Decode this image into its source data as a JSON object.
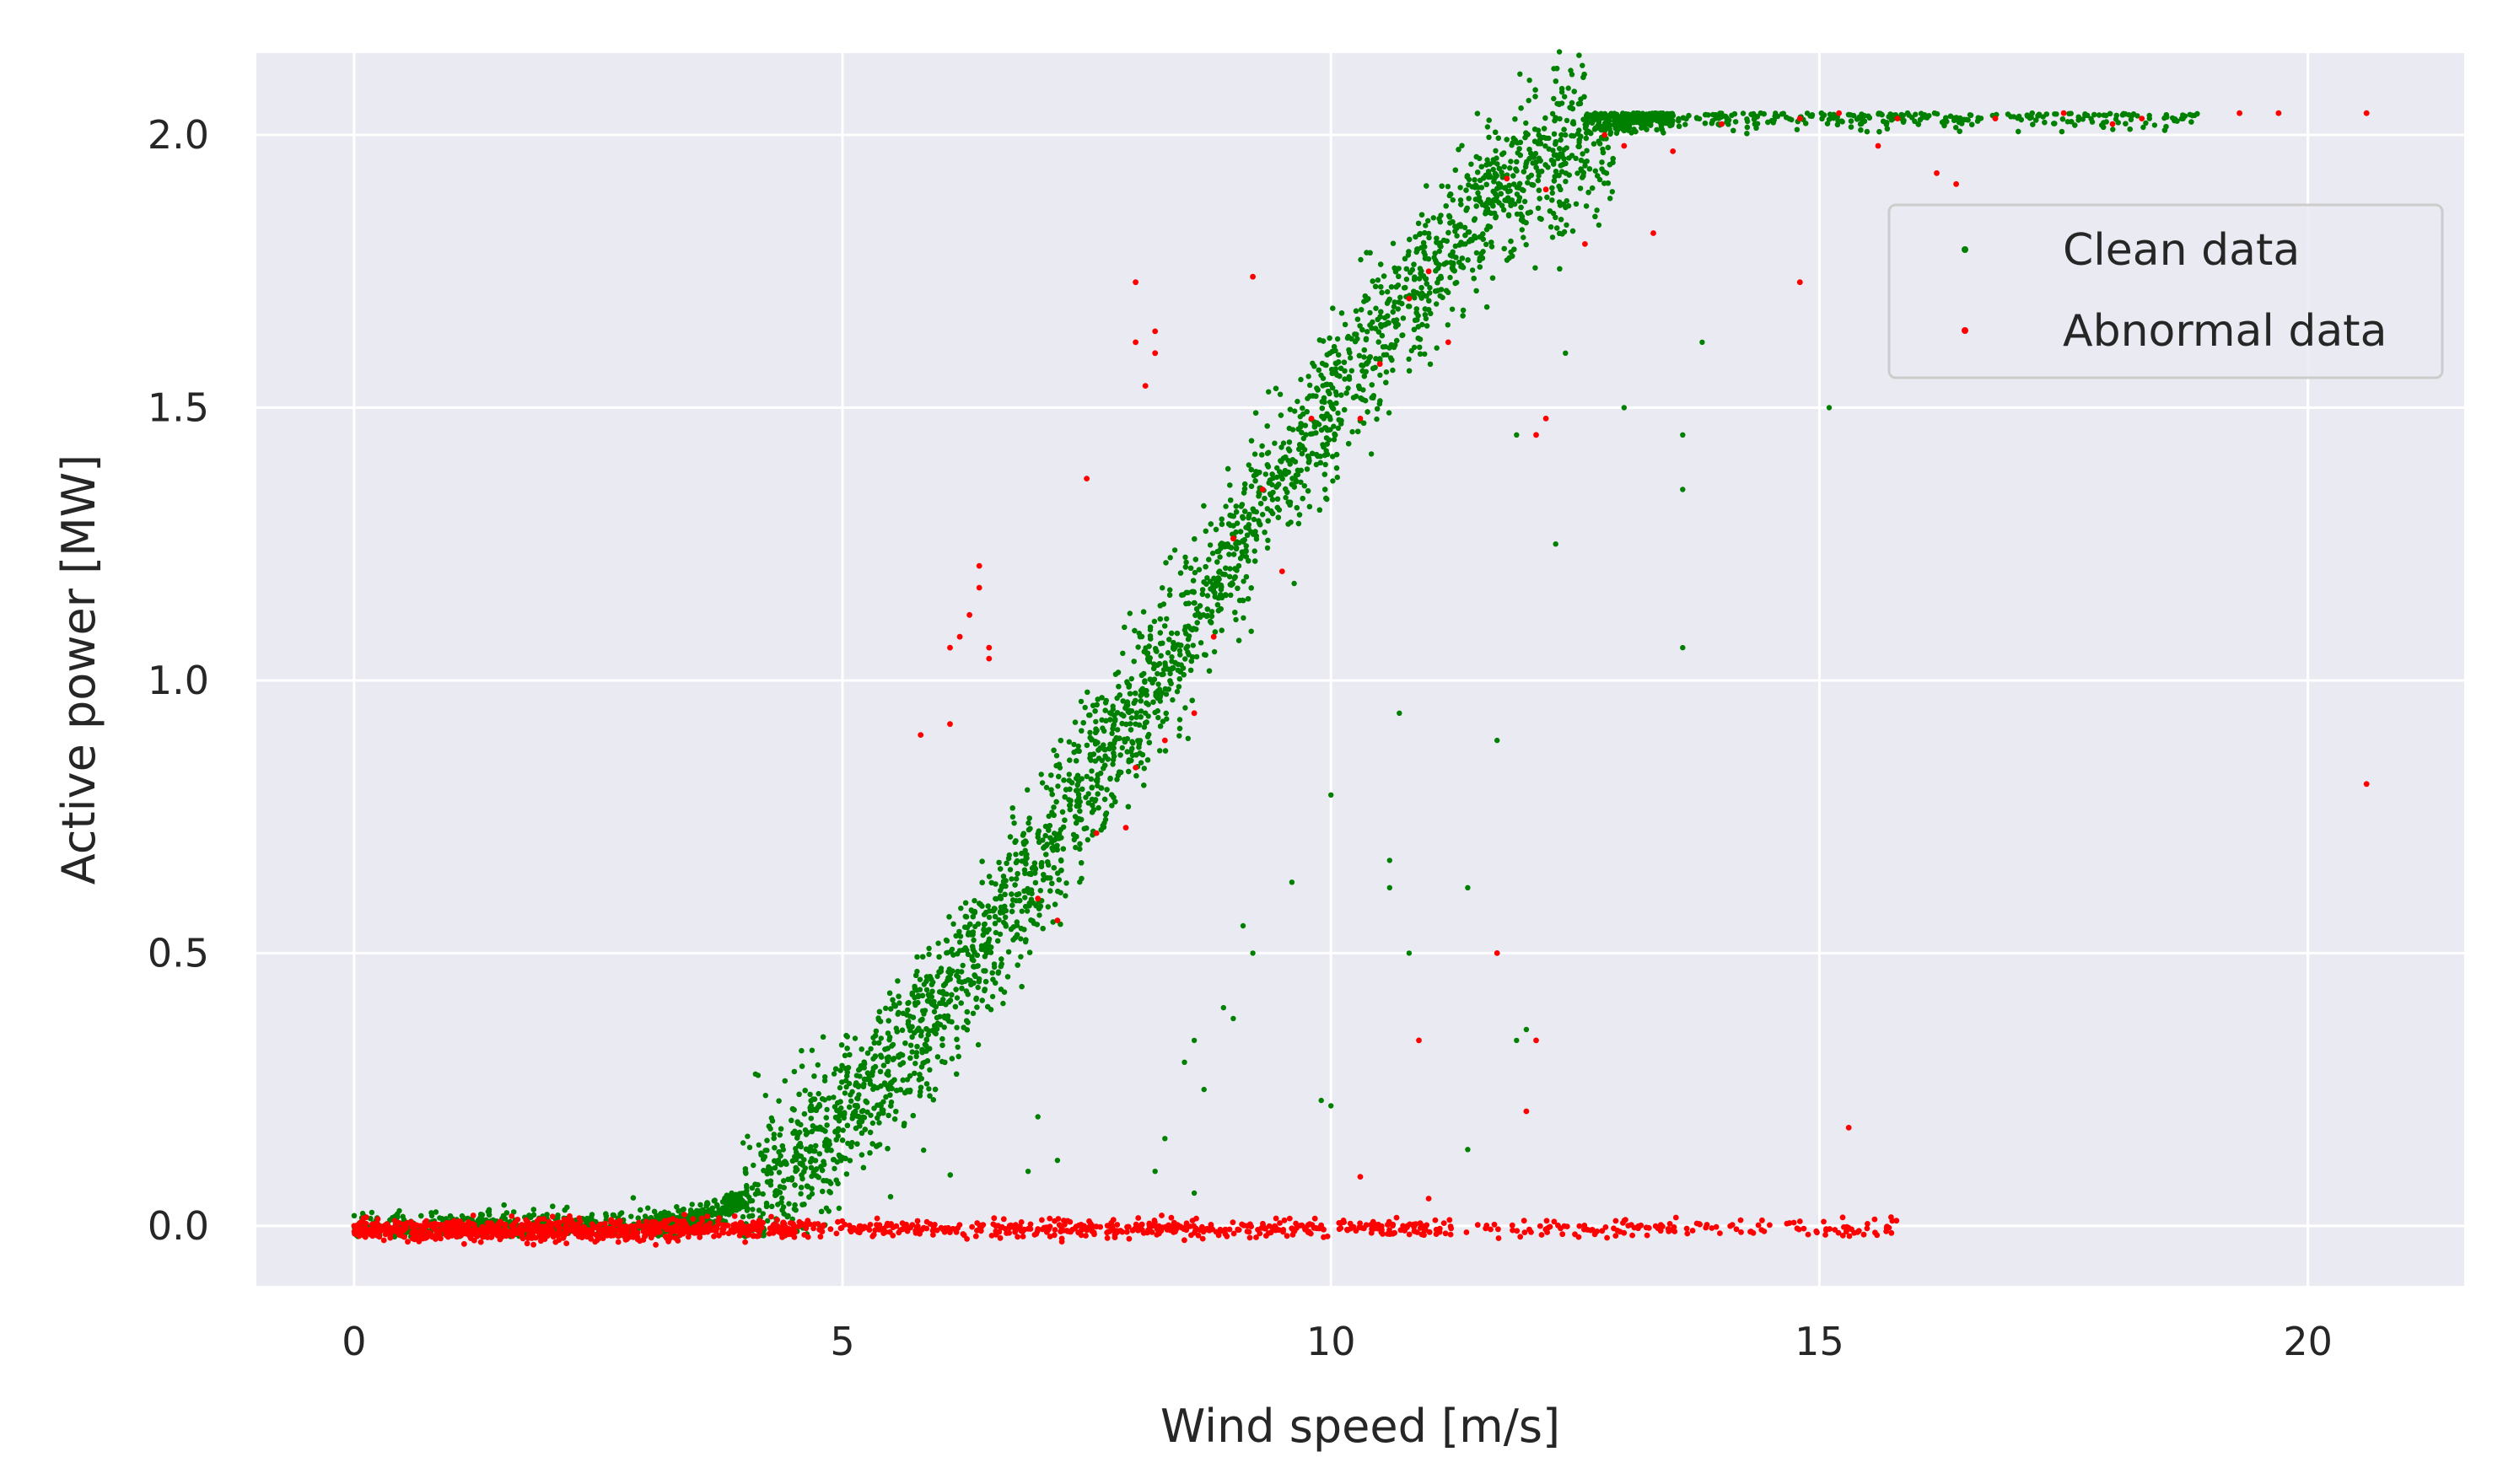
{
  "chart_data": {
    "type": "scatter",
    "title": "",
    "xlabel": "Wind speed [m/s]",
    "ylabel": "Active power [MW]",
    "xlim": [
      -1,
      21.6
    ],
    "ylim": [
      -0.11,
      2.15
    ],
    "xticks": [
      0,
      5,
      10,
      15,
      20
    ],
    "xtick_labels": [
      "0",
      "5",
      "10",
      "15",
      "20"
    ],
    "yticks": [
      0.0,
      0.5,
      1.0,
      1.5,
      2.0
    ],
    "ytick_labels": [
      "0.0",
      "0.5",
      "1.0",
      "1.5",
      "2.0"
    ],
    "grid": true,
    "legend_position": "upper-right",
    "plot_background": "#eaeaf2",
    "grid_color": "#ffffff",
    "series": [
      {
        "name": "Clean data",
        "color": "#008000",
        "power_curve": {
          "cut_in": 3.0,
          "rated_speed": 13.5,
          "rated_power": 2.04
        },
        "x_range": [
          0,
          19
        ],
        "outliers": [
          [
            13.6,
            1.06
          ],
          [
            15.1,
            1.5
          ],
          [
            13.6,
            1.35
          ],
          [
            13.6,
            1.45
          ],
          [
            11.7,
            0.89
          ],
          [
            10.7,
            0.94
          ],
          [
            11.4,
            0.62
          ],
          [
            10.0,
            0.79
          ],
          [
            10.6,
            0.67
          ],
          [
            10.6,
            0.62
          ],
          [
            10.8,
            0.5
          ],
          [
            9.6,
            0.63
          ],
          [
            11.9,
            0.34
          ],
          [
            12.0,
            0.36
          ],
          [
            9.9,
            0.23
          ],
          [
            10.0,
            0.22
          ],
          [
            11.4,
            0.14
          ],
          [
            8.5,
            0.3
          ],
          [
            8.9,
            0.4
          ],
          [
            9.0,
            0.38
          ],
          [
            8.6,
            0.34
          ],
          [
            8.7,
            0.25
          ],
          [
            8.2,
            0.1
          ],
          [
            8.6,
            0.06
          ],
          [
            8.3,
            0.16
          ],
          [
            12.3,
            1.25
          ],
          [
            11.9,
            1.45
          ],
          [
            12.4,
            1.6
          ],
          [
            13.0,
            1.5
          ],
          [
            13.8,
            1.62
          ],
          [
            7.0,
            0.2
          ],
          [
            7.2,
            0.12
          ],
          [
            6.9,
            0.1
          ],
          [
            9.1,
            0.55
          ],
          [
            9.2,
            0.5
          ]
        ]
      },
      {
        "name": "Abnormal data",
        "color": "#ff0000",
        "zero_band": [
          0,
          15.9
        ],
        "points": [
          [
            8.0,
            1.73
          ],
          [
            8.0,
            1.62
          ],
          [
            8.1,
            1.54
          ],
          [
            8.2,
            1.6
          ],
          [
            8.2,
            1.64
          ],
          [
            9.2,
            1.74
          ],
          [
            7.5,
            1.37
          ],
          [
            6.4,
            1.21
          ],
          [
            6.4,
            1.17
          ],
          [
            6.3,
            1.12
          ],
          [
            6.2,
            1.08
          ],
          [
            6.1,
            1.06
          ],
          [
            6.5,
            1.06
          ],
          [
            6.5,
            1.04
          ],
          [
            5.8,
            0.9
          ],
          [
            6.1,
            0.92
          ],
          [
            20.6,
            0.81
          ],
          [
            20.6,
            2.04
          ],
          [
            19.7,
            2.04
          ],
          [
            19.3,
            2.04
          ],
          [
            18.3,
            2.03
          ],
          [
            14.8,
            1.73
          ],
          [
            11.7,
            0.5
          ],
          [
            12.1,
            0.34
          ],
          [
            12.0,
            0.21
          ],
          [
            10.9,
            0.34
          ],
          [
            10.3,
            0.09
          ],
          [
            11.0,
            0.05
          ],
          [
            15.3,
            0.18
          ],
          [
            8.0,
            0.84
          ],
          [
            8.3,
            0.89
          ],
          [
            7.9,
            0.73
          ],
          [
            8.8,
            1.08
          ],
          [
            9.5,
            1.2
          ],
          [
            9.0,
            1.26
          ],
          [
            10.3,
            1.48
          ],
          [
            10.8,
            1.7
          ],
          [
            11.2,
            1.62
          ],
          [
            11.8,
            1.92
          ],
          [
            12.2,
            1.9
          ],
          [
            13.0,
            1.98
          ],
          [
            12.6,
            1.8
          ],
          [
            14.0,
            2.02
          ],
          [
            14.8,
            2.03
          ],
          [
            15.6,
            1.98
          ],
          [
            16.2,
            1.93
          ],
          [
            16.4,
            1.91
          ],
          [
            16.8,
            2.03
          ],
          [
            17.5,
            2.04
          ],
          [
            18.0,
            2.02
          ],
          [
            12.8,
            2.0
          ],
          [
            13.3,
            1.82
          ],
          [
            12.2,
            1.48
          ],
          [
            12.1,
            1.45
          ],
          [
            15.8,
            2.03
          ],
          [
            15.2,
            2.04
          ],
          [
            13.5,
            1.97
          ],
          [
            11.0,
            1.75
          ],
          [
            10.5,
            1.58
          ],
          [
            9.8,
            1.48
          ],
          [
            7.6,
            0.72
          ],
          [
            7.0,
            0.6
          ],
          [
            7.2,
            0.56
          ],
          [
            8.6,
            0.94
          ],
          [
            9.3,
            1.35
          ]
        ]
      }
    ]
  }
}
